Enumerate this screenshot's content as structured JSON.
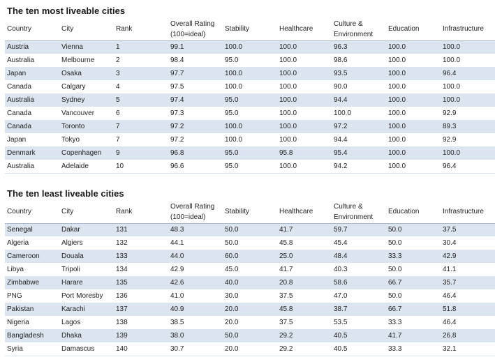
{
  "columns": [
    "Country",
    "City",
    "Rank",
    "Overall Rating (100=ideal)",
    "Stability",
    "Healthcare",
    "Culture & Environment",
    "Education",
    "Infrastructure"
  ],
  "most": {
    "title": "The ten most liveable cities",
    "rows": [
      [
        "Austria",
        "Vienna",
        "1",
        "99.1",
        "100.0",
        "100.0",
        "96.3",
        "100.0",
        "100.0"
      ],
      [
        "Australia",
        "Melbourne",
        "2",
        "98.4",
        "95.0",
        "100.0",
        "98.6",
        "100.0",
        "100.0"
      ],
      [
        "Japan",
        "Osaka",
        "3",
        "97.7",
        "100.0",
        "100.0",
        "93.5",
        "100.0",
        "96.4"
      ],
      [
        "Canada",
        "Calgary",
        "4",
        "97.5",
        "100.0",
        "100.0",
        "90.0",
        "100.0",
        "100.0"
      ],
      [
        "Australia",
        "Sydney",
        "5",
        "97.4",
        "95.0",
        "100.0",
        "94.4",
        "100.0",
        "100.0"
      ],
      [
        "Canada",
        "Vancouver",
        "6",
        "97.3",
        "95.0",
        "100.0",
        "100.0",
        "100.0",
        "92.9"
      ],
      [
        "Canada",
        "Toronto",
        "7",
        "97.2",
        "100.0",
        "100.0",
        "97.2",
        "100.0",
        "89.3"
      ],
      [
        "Japan",
        "Tokyo",
        "7",
        "97.2",
        "100.0",
        "100.0",
        "94.4",
        "100.0",
        "92.9"
      ],
      [
        "Denmark",
        "Copenhagen",
        "9",
        "96.8",
        "95.0",
        "95.8",
        "95.4",
        "100.0",
        "100.0"
      ],
      [
        "Australia",
        "Adelaide",
        "10",
        "96.6",
        "95.0",
        "100.0",
        "94.2",
        "100.0",
        "96.4"
      ]
    ]
  },
  "least": {
    "title": "The ten least liveable cities",
    "rows": [
      [
        "Senegal",
        "Dakar",
        "131",
        "48.3",
        "50.0",
        "41.7",
        "59.7",
        "50.0",
        "37.5"
      ],
      [
        "Algeria",
        "Algiers",
        "132",
        "44.1",
        "50.0",
        "45.8",
        "45.4",
        "50.0",
        "30.4"
      ],
      [
        "Cameroon",
        "Douala",
        "133",
        "44.0",
        "60.0",
        "25.0",
        "48.4",
        "33.3",
        "42.9"
      ],
      [
        "Libya",
        "Tripoli",
        "134",
        "42.9",
        "45.0",
        "41.7",
        "40.3",
        "50.0",
        "41.1"
      ],
      [
        "Zimbabwe",
        "Harare",
        "135",
        "42.6",
        "40.0",
        "20.8",
        "58.6",
        "66.7",
        "35.7"
      ],
      [
        "PNG",
        "Port Moresby",
        "136",
        "41.0",
        "30.0",
        "37.5",
        "47.0",
        "50.0",
        "46.4"
      ],
      [
        "Pakistan",
        "Karachi",
        "137",
        "40.9",
        "20.0",
        "45.8",
        "38.7",
        "66.7",
        "51.8"
      ],
      [
        "Nigeria",
        "Lagos",
        "138",
        "38.5",
        "20.0",
        "37.5",
        "53.5",
        "33.3",
        "46.4"
      ],
      [
        "Bangladesh",
        "Dhaka",
        "139",
        "38.0",
        "50.0",
        "29.2",
        "40.5",
        "41.7",
        "26.8"
      ],
      [
        "Syria",
        "Damascus",
        "140",
        "30.7",
        "20.0",
        "29.2",
        "40.5",
        "33.3",
        "32.1"
      ]
    ]
  },
  "colors": {
    "row_stripe": "#dbe4ef",
    "header_rule": "#aab8c8"
  }
}
